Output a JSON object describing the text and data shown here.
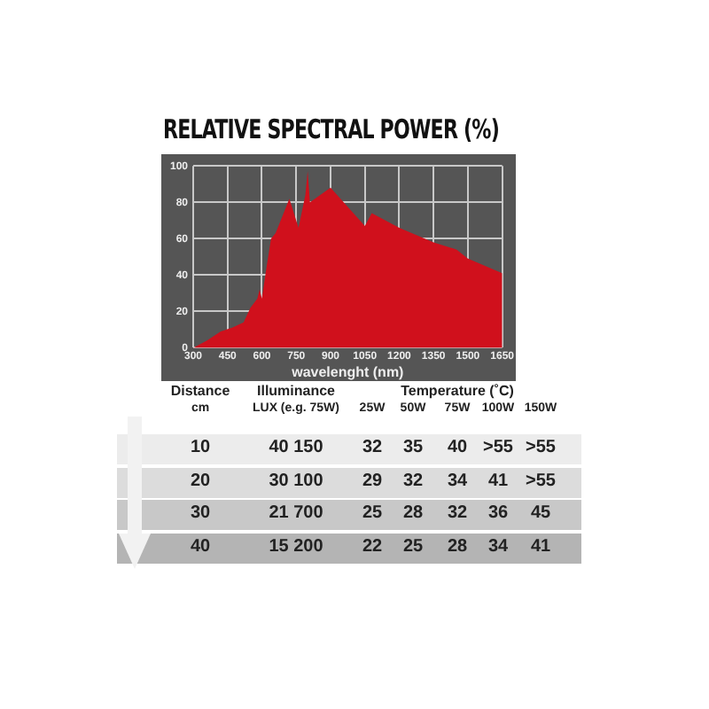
{
  "chart_data": {
    "type": "area",
    "title": "RELATIVE SPECTRAL POWER (%)",
    "xlabel": "wavelenght (nm)",
    "x": [
      300,
      360,
      420,
      470,
      520,
      550,
      580,
      590,
      600,
      620,
      640,
      660,
      720,
      760,
      790,
      800,
      810,
      900,
      1050,
      1080,
      1200,
      1350,
      1450,
      1500,
      1650
    ],
    "series": [
      {
        "color": "#d0101c",
        "values": [
          0,
          4,
          9,
          11,
          14,
          22,
          27,
          32,
          27,
          44,
          60,
          63,
          82,
          66,
          84,
          97,
          80,
          88,
          67,
          74,
          66,
          58,
          54,
          49,
          41
        ]
      }
    ],
    "xlim": [
      300,
      1650
    ],
    "xticks": [
      300,
      450,
      600,
      750,
      900,
      1050,
      1200,
      1350,
      1500,
      1650
    ],
    "ylim": [
      0,
      100
    ],
    "yticks": [
      0,
      20,
      40,
      60,
      80,
      100
    ],
    "grid": true,
    "legend": false,
    "annotations": [
      "Distance",
      "Illuminance",
      "Temperature (˚C)",
      "cm",
      "LUX (e.g. 75W)",
      "25W",
      "50W",
      "75W",
      "100W",
      "150W",
      "10",
      "40 150",
      "32",
      "35",
      "40",
      ">55",
      ">55",
      "20",
      "30 100",
      "29",
      "32",
      "34",
      "41",
      ">55",
      "30",
      "21 700",
      "25",
      "28",
      "32",
      "36",
      "45",
      "40",
      "15 200",
      "22",
      "25",
      "28",
      "34",
      "41"
    ]
  }
}
